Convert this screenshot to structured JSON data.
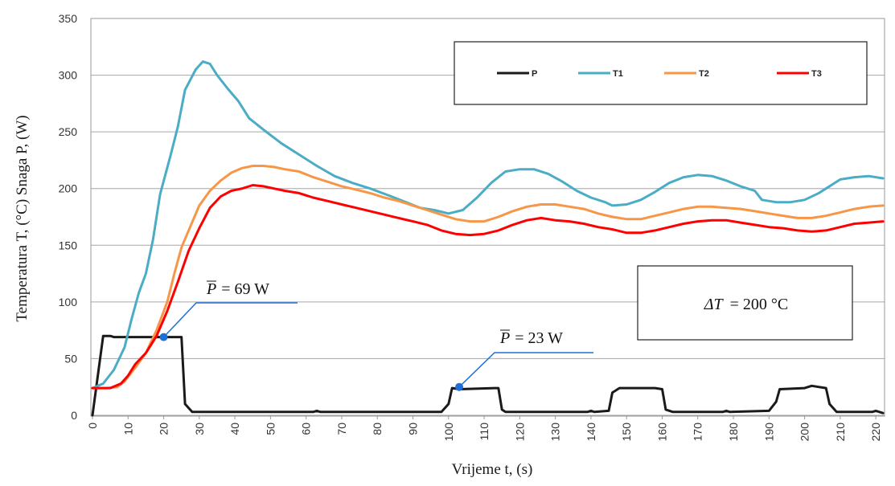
{
  "chart_data": {
    "type": "line",
    "xlabel": "Vrijeme t, (s)",
    "ylabel": "Temperatura T, (°C)   Snaga P, (W)",
    "xlim": [
      0,
      222
    ],
    "ylim": [
      0,
      350
    ],
    "x_ticks": [
      0,
      10,
      20,
      30,
      40,
      50,
      60,
      70,
      80,
      90,
      100,
      110,
      120,
      130,
      140,
      150,
      160,
      170,
      180,
      190,
      200,
      210,
      220
    ],
    "y_ticks": [
      0,
      50,
      100,
      150,
      200,
      250,
      300,
      350
    ],
    "grid": "horizontal",
    "legend_position": "top-right",
    "series": [
      {
        "name": "P",
        "color": "#1a1a1a",
        "points": [
          [
            0,
            0
          ],
          [
            3,
            70
          ],
          [
            5,
            70
          ],
          [
            6,
            69
          ],
          [
            24,
            69
          ],
          [
            25,
            69
          ],
          [
            26,
            10
          ],
          [
            28,
            3
          ],
          [
            62,
            3
          ],
          [
            63,
            4
          ],
          [
            64,
            3
          ],
          [
            98,
            3
          ],
          [
            100,
            10
          ],
          [
            101,
            24
          ],
          [
            103,
            23
          ],
          [
            113,
            24
          ],
          [
            114,
            24
          ],
          [
            115,
            5
          ],
          [
            116,
            3
          ],
          [
            139,
            3
          ],
          [
            140,
            4
          ],
          [
            141,
            3
          ],
          [
            145,
            4
          ],
          [
            146,
            20
          ],
          [
            148,
            24
          ],
          [
            158,
            24
          ],
          [
            160,
            23
          ],
          [
            161,
            5
          ],
          [
            163,
            3
          ],
          [
            177,
            3
          ],
          [
            178,
            4
          ],
          [
            179,
            3
          ],
          [
            190,
            4
          ],
          [
            192,
            12
          ],
          [
            193,
            23
          ],
          [
            200,
            24
          ],
          [
            202,
            26
          ],
          [
            206,
            24
          ],
          [
            207,
            10
          ],
          [
            209,
            3
          ],
          [
            219,
            3
          ],
          [
            220,
            4
          ],
          [
            222,
            2
          ]
        ]
      },
      {
        "name": "T1",
        "color": "#4bacc6",
        "points": [
          [
            0,
            24
          ],
          [
            3,
            28
          ],
          [
            6,
            40
          ],
          [
            9,
            60
          ],
          [
            11,
            85
          ],
          [
            13,
            108
          ],
          [
            15,
            125
          ],
          [
            17,
            155
          ],
          [
            19,
            195
          ],
          [
            22,
            230
          ],
          [
            24,
            255
          ],
          [
            26,
            287
          ],
          [
            29,
            305
          ],
          [
            31,
            312
          ],
          [
            33,
            310
          ],
          [
            35,
            300
          ],
          [
            38,
            288
          ],
          [
            41,
            277
          ],
          [
            44,
            262
          ],
          [
            48,
            252
          ],
          [
            53,
            240
          ],
          [
            58,
            230
          ],
          [
            63,
            220
          ],
          [
            68,
            211
          ],
          [
            73,
            205
          ],
          [
            78,
            200
          ],
          [
            84,
            193
          ],
          [
            88,
            188
          ],
          [
            92,
            183
          ],
          [
            96,
            181
          ],
          [
            100,
            178
          ],
          [
            104,
            181
          ],
          [
            108,
            192
          ],
          [
            112,
            205
          ],
          [
            116,
            215
          ],
          [
            120,
            217
          ],
          [
            124,
            217
          ],
          [
            128,
            213
          ],
          [
            132,
            206
          ],
          [
            136,
            198
          ],
          [
            140,
            192
          ],
          [
            144,
            188
          ],
          [
            146,
            185
          ],
          [
            150,
            186
          ],
          [
            154,
            190
          ],
          [
            158,
            197
          ],
          [
            162,
            205
          ],
          [
            166,
            210
          ],
          [
            170,
            212
          ],
          [
            174,
            211
          ],
          [
            178,
            207
          ],
          [
            182,
            202
          ],
          [
            186,
            198
          ],
          [
            188,
            190
          ],
          [
            192,
            188
          ],
          [
            196,
            188
          ],
          [
            200,
            190
          ],
          [
            204,
            196
          ],
          [
            206,
            200
          ],
          [
            210,
            208
          ],
          [
            214,
            210
          ],
          [
            218,
            211
          ],
          [
            222,
            209
          ]
        ]
      },
      {
        "name": "T2",
        "color": "#f79646",
        "points": [
          [
            0,
            24
          ],
          [
            4,
            24
          ],
          [
            7,
            25
          ],
          [
            9,
            30
          ],
          [
            12,
            42
          ],
          [
            15,
            55
          ],
          [
            18,
            75
          ],
          [
            21,
            100
          ],
          [
            23,
            125
          ],
          [
            25,
            148
          ],
          [
            27,
            163
          ],
          [
            30,
            185
          ],
          [
            33,
            198
          ],
          [
            36,
            207
          ],
          [
            39,
            214
          ],
          [
            42,
            218
          ],
          [
            45,
            220
          ],
          [
            48,
            220
          ],
          [
            51,
            219
          ],
          [
            54,
            217
          ],
          [
            58,
            215
          ],
          [
            62,
            210
          ],
          [
            66,
            206
          ],
          [
            70,
            202
          ],
          [
            74,
            199
          ],
          [
            78,
            196
          ],
          [
            82,
            192
          ],
          [
            86,
            189
          ],
          [
            90,
            185
          ],
          [
            94,
            181
          ],
          [
            98,
            177
          ],
          [
            102,
            173
          ],
          [
            106,
            171
          ],
          [
            110,
            171
          ],
          [
            114,
            175
          ],
          [
            118,
            180
          ],
          [
            122,
            184
          ],
          [
            126,
            186
          ],
          [
            130,
            186
          ],
          [
            134,
            184
          ],
          [
            138,
            182
          ],
          [
            142,
            178
          ],
          [
            146,
            175
          ],
          [
            150,
            173
          ],
          [
            154,
            173
          ],
          [
            158,
            176
          ],
          [
            162,
            179
          ],
          [
            166,
            182
          ],
          [
            170,
            184
          ],
          [
            174,
            184
          ],
          [
            178,
            183
          ],
          [
            182,
            182
          ],
          [
            186,
            180
          ],
          [
            190,
            178
          ],
          [
            194,
            176
          ],
          [
            198,
            174
          ],
          [
            202,
            174
          ],
          [
            206,
            176
          ],
          [
            210,
            179
          ],
          [
            214,
            182
          ],
          [
            218,
            184
          ],
          [
            222,
            185
          ]
        ]
      },
      {
        "name": "T3",
        "color": "#ff0000",
        "points": [
          [
            0,
            24
          ],
          [
            5,
            24
          ],
          [
            8,
            28
          ],
          [
            10,
            35
          ],
          [
            12,
            45
          ],
          [
            15,
            55
          ],
          [
            18,
            70
          ],
          [
            21,
            92
          ],
          [
            24,
            118
          ],
          [
            27,
            145
          ],
          [
            30,
            165
          ],
          [
            33,
            183
          ],
          [
            36,
            193
          ],
          [
            39,
            198
          ],
          [
            42,
            200
          ],
          [
            45,
            203
          ],
          [
            48,
            202
          ],
          [
            51,
            200
          ],
          [
            54,
            198
          ],
          [
            58,
            196
          ],
          [
            62,
            192
          ],
          [
            66,
            189
          ],
          [
            70,
            186
          ],
          [
            74,
            183
          ],
          [
            78,
            180
          ],
          [
            82,
            177
          ],
          [
            86,
            174
          ],
          [
            90,
            171
          ],
          [
            94,
            168
          ],
          [
            98,
            163
          ],
          [
            102,
            160
          ],
          [
            106,
            159
          ],
          [
            110,
            160
          ],
          [
            114,
            163
          ],
          [
            118,
            168
          ],
          [
            122,
            172
          ],
          [
            126,
            174
          ],
          [
            130,
            172
          ],
          [
            134,
            171
          ],
          [
            138,
            169
          ],
          [
            142,
            166
          ],
          [
            146,
            164
          ],
          [
            150,
            161
          ],
          [
            154,
            161
          ],
          [
            158,
            163
          ],
          [
            162,
            166
          ],
          [
            166,
            169
          ],
          [
            170,
            171
          ],
          [
            174,
            172
          ],
          [
            178,
            172
          ],
          [
            182,
            170
          ],
          [
            186,
            168
          ],
          [
            190,
            166
          ],
          [
            194,
            165
          ],
          [
            198,
            163
          ],
          [
            202,
            162
          ],
          [
            206,
            163
          ],
          [
            210,
            166
          ],
          [
            214,
            169
          ],
          [
            218,
            170
          ],
          [
            222,
            171
          ]
        ]
      }
    ],
    "annotations": [
      {
        "text": "= 69 W",
        "symbol": "P",
        "x": 20,
        "y": 69,
        "color": "#1f6fd8"
      },
      {
        "text": "= 23 W",
        "symbol": "P",
        "x": 103,
        "y": 25,
        "color": "#1f6fd8"
      }
    ],
    "info_box": {
      "text": "= 200 °C",
      "symbol": "ΔT"
    }
  }
}
